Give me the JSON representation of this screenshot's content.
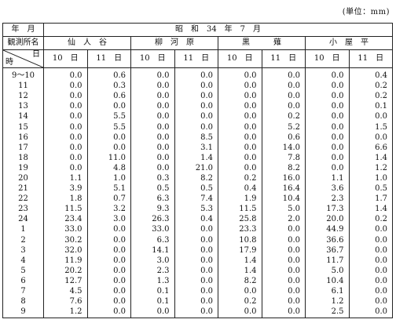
{
  "unit_label": "(単位：mm)",
  "header": {
    "year_month_label": "年　月",
    "period": "昭　和　34　年　7　月",
    "station_label": "観測所名",
    "corner_top": "日",
    "corner_bottom": "時",
    "stations": [
      "仙　人　谷",
      "柳　河　原",
      "黒　　　薙",
      "小　屋　平"
    ],
    "days": [
      "10",
      "11",
      "10",
      "11",
      "10",
      "11",
      "10",
      "11"
    ],
    "day_suffix": "日"
  },
  "rows": [
    {
      "hour": "9〜10",
      "values": [
        "0.0",
        "0.6",
        "0.0",
        "0.0",
        "0.0",
        "0.0",
        "0.0",
        "0.4"
      ]
    },
    {
      "hour": "11",
      "values": [
        "0.0",
        "0.3",
        "0.0",
        "0.0",
        "0.0",
        "0.0",
        "0.0",
        "0.2"
      ]
    },
    {
      "hour": "12",
      "values": [
        "0.0",
        "0.6",
        "0.0",
        "0.0",
        "0.0",
        "0.0",
        "0.0",
        "0.2"
      ]
    },
    {
      "hour": "13",
      "values": [
        "0.0",
        "0.0",
        "0.0",
        "0.0",
        "0.0",
        "0.0",
        "0.0",
        "0.1"
      ]
    },
    {
      "hour": "14",
      "values": [
        "0.0",
        "5.5",
        "0.0",
        "0.0",
        "0.0",
        "0.2",
        "0.0",
        "0.0"
      ]
    },
    {
      "hour": "15",
      "values": [
        "0.0",
        "5.5",
        "0.0",
        "0.0",
        "0.0",
        "5.2",
        "0.0",
        "1.5"
      ]
    },
    {
      "hour": "16",
      "values": [
        "0.0",
        "0.0",
        "0.0",
        "8.5",
        "0.0",
        "0.6",
        "0.0",
        "0.0"
      ]
    },
    {
      "hour": "17",
      "values": [
        "0.0",
        "0.0",
        "0.0",
        "3.1",
        "0.0",
        "14.0",
        "0.0",
        "6.6"
      ]
    },
    {
      "hour": "18",
      "values": [
        "0.0",
        "11.0",
        "0.0",
        "1.4",
        "0.0",
        "7.8",
        "0.0",
        "1.4"
      ]
    },
    {
      "hour": "19",
      "values": [
        "0.0",
        "4.8",
        "0.0",
        "21.0",
        "0.0",
        "8.2",
        "0.0",
        "1.2"
      ]
    },
    {
      "hour": "20",
      "values": [
        "1.1",
        "1.0",
        "0.3",
        "8.2",
        "0.2",
        "16.0",
        "1.1",
        "1.0"
      ]
    },
    {
      "hour": "21",
      "values": [
        "3.9",
        "5.1",
        "0.5",
        "0.5",
        "0.4",
        "16.4",
        "3.6",
        "0.5"
      ]
    },
    {
      "hour": "22",
      "values": [
        "1.8",
        "0.7",
        "6.3",
        "7.4",
        "1.9",
        "10.4",
        "2.3",
        "1.7"
      ]
    },
    {
      "hour": "23",
      "values": [
        "11.5",
        "3.2",
        "9.3",
        "5.3",
        "11.5",
        "5.0",
        "17.3",
        "1.4"
      ]
    },
    {
      "hour": "24",
      "values": [
        "23.4",
        "3.0",
        "26.3",
        "0.4",
        "25.8",
        "2.0",
        "20.0",
        "0.2"
      ]
    },
    {
      "hour": "1",
      "values": [
        "33.0",
        "0.0",
        "33.0",
        "0.0",
        "23.3",
        "0.0",
        "44.9",
        "0.0"
      ]
    },
    {
      "hour": "2",
      "values": [
        "30.2",
        "0.0",
        "6.3",
        "0.0",
        "10.8",
        "0.0",
        "36.6",
        "0.0"
      ]
    },
    {
      "hour": "3",
      "values": [
        "32.0",
        "0.0",
        "14.1",
        "0.0",
        "17.9",
        "0.0",
        "36.7",
        "0.0"
      ]
    },
    {
      "hour": "4",
      "values": [
        "11.9",
        "0.0",
        "3.0",
        "0.0",
        "1.4",
        "0.0",
        "11.7",
        "0.0"
      ]
    },
    {
      "hour": "5",
      "values": [
        "20.2",
        "0.0",
        "2.3",
        "0.0",
        "1.4",
        "0.0",
        "5.0",
        "0.0"
      ]
    },
    {
      "hour": "6",
      "values": [
        "12.7",
        "0.0",
        "1.3",
        "0.0",
        "8.2",
        "0.0",
        "10.4",
        "0.0"
      ]
    },
    {
      "hour": "7",
      "values": [
        "4.5",
        "0.0",
        "0.1",
        "0.0",
        "0.0",
        "0.0",
        "6.1",
        "0.0"
      ]
    },
    {
      "hour": "8",
      "values": [
        "7.6",
        "0.0",
        "0.1",
        "0.0",
        "0.2",
        "0.0",
        "1.2",
        "0.0"
      ]
    },
    {
      "hour": "9",
      "values": [
        "1.2",
        "0.0",
        "0.0",
        "0.0",
        "0.0",
        "0.0",
        "2.5",
        "0.0"
      ]
    }
  ]
}
